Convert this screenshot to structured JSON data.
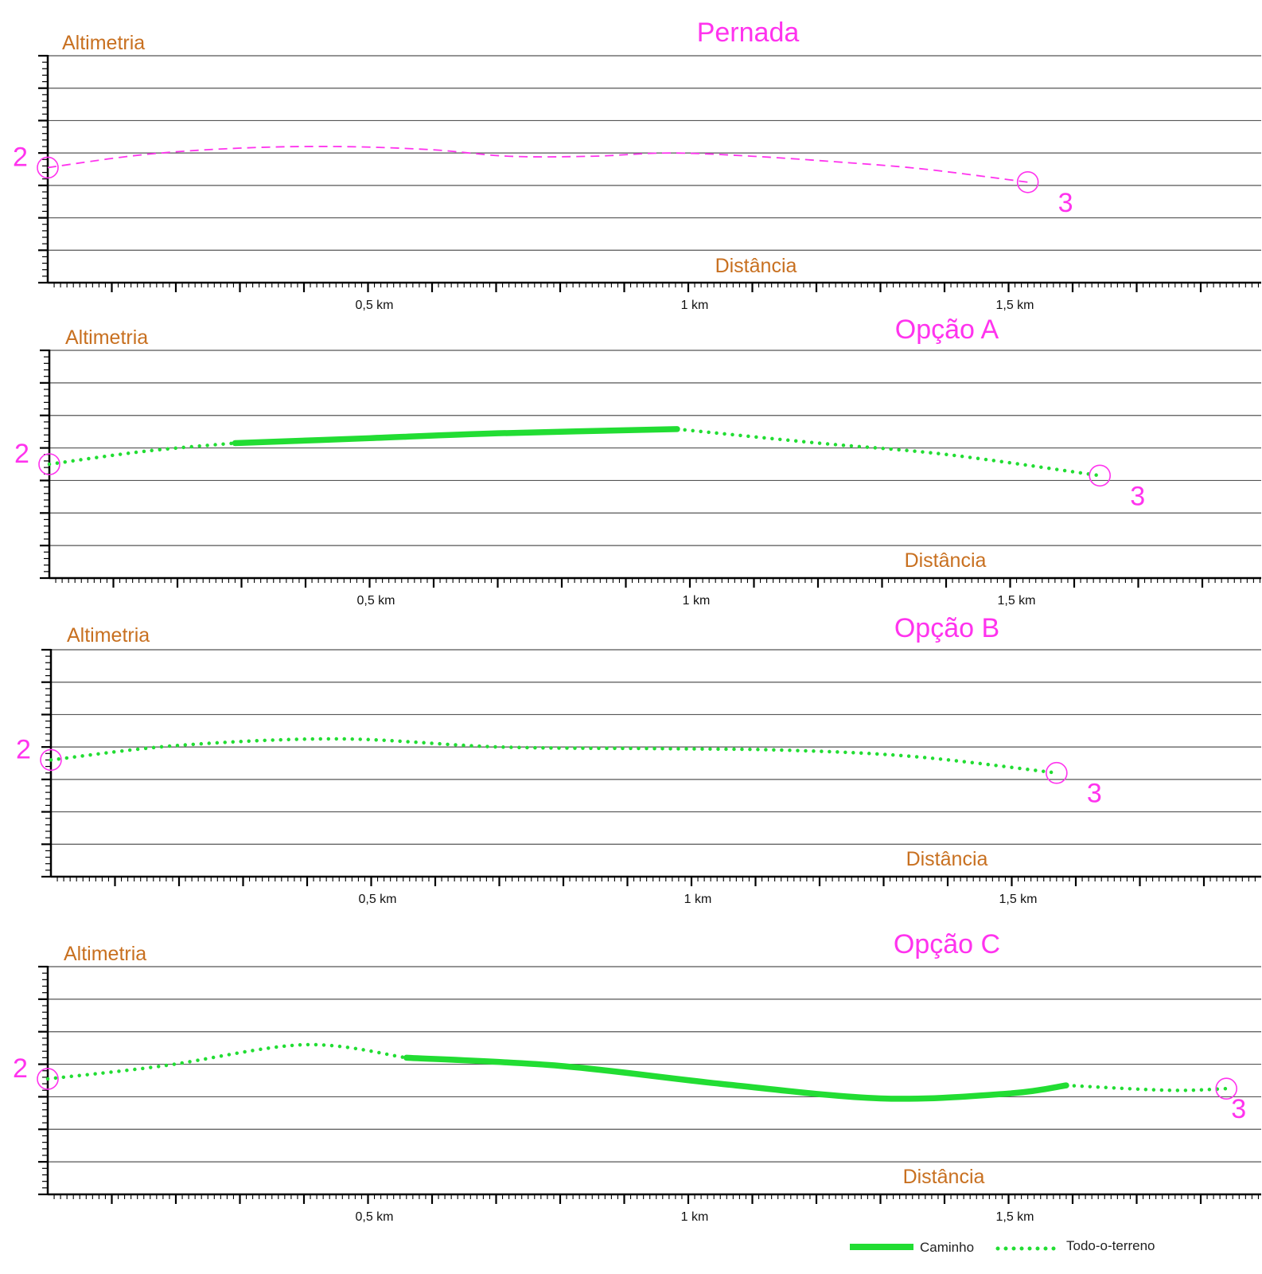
{
  "colors": {
    "accent": "#ff33ee",
    "axis_label": "#c87020",
    "green": "#22dd33",
    "grid": "#555555",
    "axis": "#000000"
  },
  "chart_data": [
    {
      "type": "line",
      "title": "Pernada",
      "ylabel": "Altimetria",
      "xlabel": "Distância",
      "x_unit": "km",
      "xlim": [
        0,
        1.9
      ],
      "ylim": [
        0,
        7
      ],
      "x_tick_labels": [
        "0,5 km",
        "1 km",
        "1,5 km"
      ],
      "x_tick_values": [
        0.5,
        1.0,
        1.5
      ],
      "grid": true,
      "start_label": "2",
      "end_label": "3",
      "series": [
        {
          "style": "dashed",
          "points": [
            [
              0,
              3.55
            ],
            [
              0.15,
              3.95
            ],
            [
              0.3,
              4.15
            ],
            [
              0.45,
              4.2
            ],
            [
              0.6,
              4.1
            ],
            [
              0.72,
              3.9
            ],
            [
              0.85,
              3.9
            ],
            [
              0.97,
              4.0
            ],
            [
              1.1,
              3.9
            ],
            [
              1.25,
              3.7
            ],
            [
              1.37,
              3.5
            ],
            [
              1.53,
              3.1
            ]
          ]
        }
      ]
    },
    {
      "type": "line",
      "title": "Opção A",
      "ylabel": "Altimetria",
      "xlabel": "Distância",
      "x_unit": "km",
      "xlim": [
        0,
        1.9
      ],
      "ylim": [
        0,
        7
      ],
      "x_tick_labels": [
        "0,5 km",
        "1 km",
        "1,5 km"
      ],
      "x_tick_values": [
        0.5,
        1.0,
        1.5
      ],
      "grid": true,
      "start_label": "2",
      "end_label": "3",
      "series": [
        {
          "name": "Todo-o-terreno",
          "style": "dotted",
          "points": [
            [
              0,
              3.5
            ],
            [
              0.15,
              3.9
            ],
            [
              0.29,
              4.15
            ]
          ]
        },
        {
          "name": "Caminho",
          "style": "solid",
          "points": [
            [
              0.29,
              4.15
            ],
            [
              0.5,
              4.3
            ],
            [
              0.7,
              4.45
            ],
            [
              0.98,
              4.58
            ]
          ]
        },
        {
          "name": "Todo-o-terreno",
          "style": "dotted",
          "points": [
            [
              0.98,
              4.58
            ],
            [
              1.2,
              4.15
            ],
            [
              1.4,
              3.8
            ],
            [
              1.64,
              3.15
            ]
          ]
        }
      ]
    },
    {
      "type": "line",
      "title": "Opção B",
      "ylabel": "Altimetria",
      "xlabel": "Distância",
      "x_unit": "km",
      "xlim": [
        0,
        1.9
      ],
      "ylim": [
        0,
        7
      ],
      "x_tick_labels": [
        "0,5 km",
        "1 km",
        "1,5 km"
      ],
      "x_tick_values": [
        0.5,
        1.0,
        1.5
      ],
      "grid": true,
      "start_label": "2",
      "end_label": "3",
      "series": [
        {
          "name": "Todo-o-terreno",
          "style": "dotted",
          "points": [
            [
              0,
              3.6
            ],
            [
              0.2,
              4.05
            ],
            [
              0.45,
              4.25
            ],
            [
              0.7,
              4.0
            ],
            [
              0.95,
              3.95
            ],
            [
              1.15,
              3.9
            ],
            [
              1.35,
              3.7
            ],
            [
              1.57,
              3.2
            ]
          ]
        }
      ]
    },
    {
      "type": "line",
      "title": "Opção C",
      "ylabel": "Altimetria",
      "xlabel": "Distância",
      "x_unit": "km",
      "xlim": [
        0,
        1.9
      ],
      "ylim": [
        0,
        7
      ],
      "x_tick_labels": [
        "0,5 km",
        "1 km",
        "1,5 km"
      ],
      "x_tick_values": [
        0.5,
        1.0,
        1.5
      ],
      "grid": true,
      "start_label": "2",
      "end_label": "3",
      "series": [
        {
          "name": "Todo-o-terreno",
          "style": "dotted",
          "points": [
            [
              0,
              3.55
            ],
            [
              0.18,
              3.95
            ],
            [
              0.4,
              4.6
            ],
            [
              0.56,
              4.2
            ]
          ]
        },
        {
          "name": "Caminho",
          "style": "solid",
          "points": [
            [
              0.56,
              4.2
            ],
            [
              0.8,
              3.95
            ],
            [
              1.05,
              3.4
            ],
            [
              1.3,
              2.95
            ],
            [
              1.5,
              3.1
            ],
            [
              1.59,
              3.35
            ]
          ]
        },
        {
          "name": "Todo-o-terreno",
          "style": "dotted",
          "points": [
            [
              1.59,
              3.35
            ],
            [
              1.75,
              3.2
            ],
            [
              1.84,
              3.25
            ]
          ]
        }
      ]
    }
  ],
  "legend": {
    "position": "bottom-right",
    "items": [
      {
        "name": "Caminho",
        "style": "solid"
      },
      {
        "name": "Todo-o-terreno",
        "style": "dotted"
      }
    ]
  }
}
